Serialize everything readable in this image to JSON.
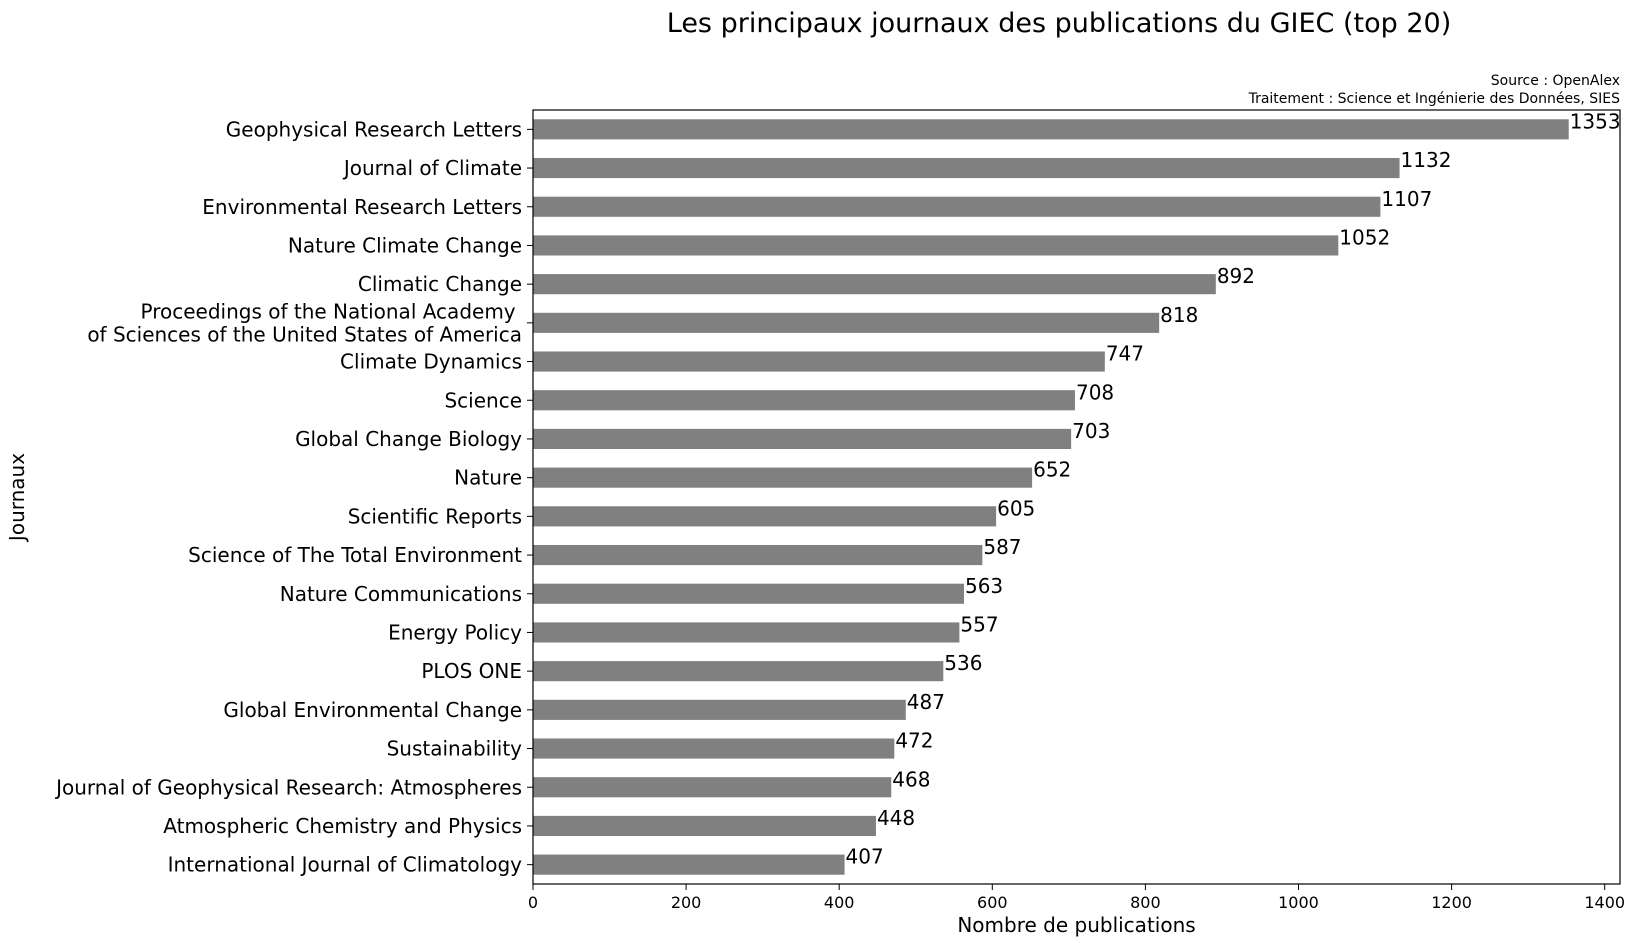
{
  "chart_data": {
    "type": "bar",
    "orientation": "horizontal",
    "title": "Les principaux journaux des publications du GIEC (top 20)",
    "source_lines": [
      "Source : OpenAlex",
      "Traitement : Science et Ingénierie des Données, SIES"
    ],
    "xlabel": "Nombre de publications",
    "ylabel": "Journaux",
    "xlim": [
      0,
      1420
    ],
    "xticks": [
      0,
      200,
      400,
      600,
      800,
      1000,
      1200,
      1400
    ],
    "grid": false,
    "bar_color": "#808080",
    "categories": [
      "Geophysical Research Letters",
      "Journal of Climate",
      "Environmental Research Letters",
      "Nature Climate Change",
      "Climatic Change",
      "Proceedings of the National Academy \nof Sciences of the United States of America",
      "Climate Dynamics",
      "Science",
      "Global Change Biology",
      "Nature",
      "Scientific Reports",
      "Science of The Total Environment",
      "Nature Communications",
      "Energy Policy",
      "PLOS ONE",
      "Global Environmental Change",
      "Sustainability",
      "Journal of Geophysical Research: Atmospheres",
      "Atmospheric Chemistry and Physics",
      "International Journal of Climatology"
    ],
    "values": [
      1353,
      1132,
      1107,
      1052,
      892,
      818,
      747,
      708,
      703,
      652,
      605,
      587,
      563,
      557,
      536,
      487,
      472,
      468,
      448,
      407
    ]
  }
}
